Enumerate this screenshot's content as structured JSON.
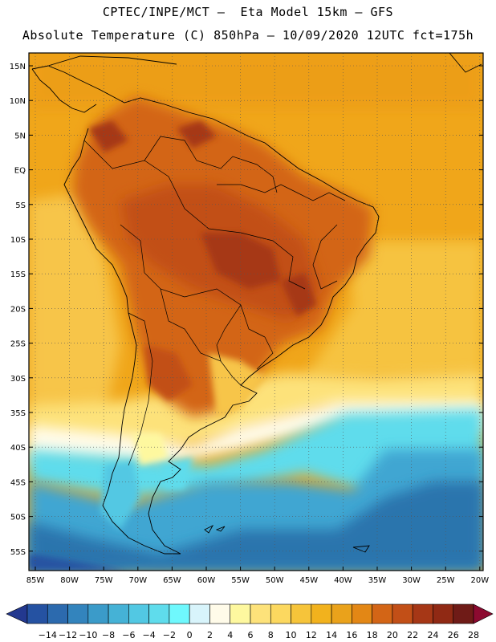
{
  "header": {
    "line1": "CPTEC/INPE/MCT –  Eta Model 15km – GFS",
    "line2": "Absolute Temperature (C) 850hPa – 10/09/2020 12UTC fct=175h"
  },
  "map": {
    "lat_labels": [
      "15N",
      "10N",
      "5N",
      "EQ",
      "5S",
      "10S",
      "15S",
      "20S",
      "25S",
      "30S",
      "35S",
      "40S",
      "45S",
      "50S",
      "55S"
    ],
    "lon_labels": [
      "85W",
      "80W",
      "75W",
      "70W",
      "65W",
      "60W",
      "55W",
      "50W",
      "45W",
      "40W",
      "35W",
      "30W",
      "25W",
      "20W"
    ],
    "colors": {
      "ocean_warm": "#f0a61a",
      "land_hot": "#c9561a",
      "land_hottest": "#b2421a",
      "cool_band": "#fde27a",
      "cold_ocean": "#3fa6d2",
      "coldest_ocean": "#2c74ad"
    }
  },
  "colorbar": {
    "labels": [
      "-14",
      "-12",
      "-10",
      "-8",
      "-6",
      "-4",
      "-2",
      "0",
      "2",
      "4",
      "6",
      "8",
      "10",
      "12",
      "14",
      "16",
      "18",
      "20",
      "22",
      "24",
      "26",
      "28"
    ],
    "colors": [
      "#23388f",
      "#2552a2",
      "#2c6aae",
      "#3384bd",
      "#3b9bc9",
      "#45b2d6",
      "#52c8e3",
      "#5fdcec",
      "#6ff8fd",
      "#d8f4fb",
      "#fffbe9",
      "#fef89f",
      "#fde27a",
      "#fcd85f",
      "#f6c43a",
      "#f2b21d",
      "#eaa21b",
      "#e38715",
      "#d36516",
      "#c24f17",
      "#a63716",
      "#902914",
      "#6f1b17",
      "#8c0a30"
    ]
  }
}
